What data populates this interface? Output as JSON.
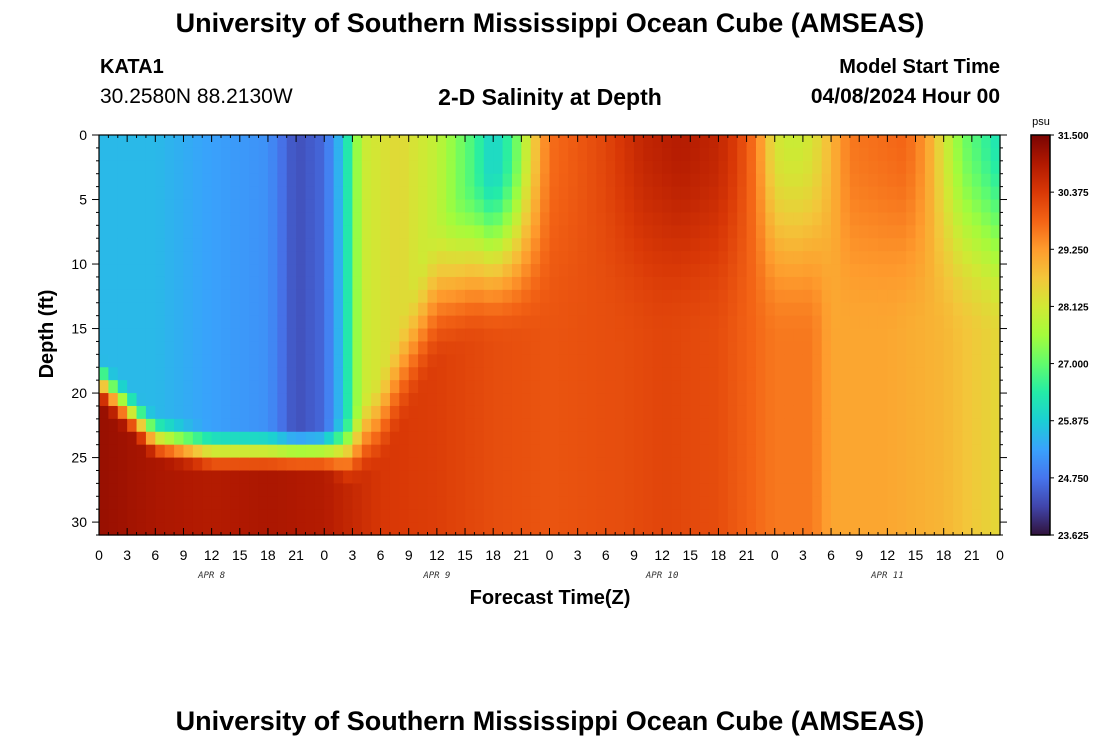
{
  "header": {
    "title": "University of Southern Mississippi Ocean Cube (AMSEAS)",
    "station": "KATA1",
    "coords": "30.2580N  88.2130W",
    "subtitle": "2-D Salinity at Depth",
    "model_start_label": "Model Start Time",
    "model_start_value": "04/08/2024 Hour 00"
  },
  "footer": {
    "title": "University of Southern Mississippi Ocean Cube (AMSEAS)"
  },
  "colors": {
    "colormap": [
      "#30123b",
      "#4145ab",
      "#4675ed",
      "#39a2fc",
      "#1bcfd4",
      "#24eca6",
      "#61fc6c",
      "#a4fc3b",
      "#d1e834",
      "#f3c63a",
      "#fe9b2d",
      "#f36315",
      "#d93806",
      "#b11901",
      "#7a0402"
    ]
  },
  "chart_data": {
    "type": "heatmap",
    "title": "2-D Salinity at Depth",
    "xlabel": "Forecast Time(Z)",
    "ylabel": "Depth (ft)",
    "x_hours": [
      0,
      96
    ],
    "y_depth_ft": [
      0,
      31
    ],
    "x_tick_labels": [
      "0",
      "3",
      "6",
      "9",
      "12",
      "15",
      "18",
      "21",
      "0",
      "3",
      "6",
      "9",
      "12",
      "15",
      "18",
      "21",
      "0",
      "3",
      "6",
      "9",
      "12",
      "15",
      "18",
      "21",
      "0",
      "3",
      "6",
      "9",
      "12",
      "15",
      "18",
      "21",
      "0"
    ],
    "y_tick_labels": [
      "0",
      "5",
      "10",
      "15",
      "20",
      "25",
      "30"
    ],
    "y_tick_values": [
      0,
      5,
      10,
      15,
      20,
      25,
      30
    ],
    "date_labels": [
      {
        "label": "APR 8",
        "hour": 12
      },
      {
        "label": "APR 9",
        "hour": 36
      },
      {
        "label": "APR 10",
        "hour": 60
      },
      {
        "label": "APR 11",
        "hour": 84
      }
    ],
    "colorbar": {
      "unit": "psu",
      "min": 23.625,
      "max": 31.5,
      "tick_labels": [
        "31.500",
        "30.375",
        "29.250",
        "28.125",
        "27.000",
        "25.875",
        "24.750",
        "23.625"
      ],
      "tick_values": [
        31.5,
        30.375,
        29.25,
        28.125,
        27.0,
        25.875,
        24.75,
        23.625
      ]
    },
    "surface_salinity_psu": [
      [
        0,
        25.6
      ],
      [
        6,
        25.6
      ],
      [
        12,
        25.3
      ],
      [
        18,
        25.1
      ],
      [
        21,
        24.3
      ],
      [
        24,
        24.6
      ],
      [
        26,
        25.8
      ],
      [
        28,
        28.0
      ],
      [
        32,
        28.4
      ],
      [
        36,
        27.9
      ],
      [
        40,
        26.7
      ],
      [
        42,
        25.9
      ],
      [
        44,
        26.7
      ],
      [
        46,
        28.4
      ],
      [
        48,
        29.7
      ],
      [
        54,
        30.2
      ],
      [
        58,
        30.7
      ],
      [
        62,
        30.9
      ],
      [
        66,
        30.7
      ],
      [
        68,
        30.3
      ],
      [
        70,
        29.6
      ],
      [
        72,
        28.2
      ],
      [
        74,
        28.0
      ],
      [
        76,
        28.2
      ],
      [
        78,
        28.9
      ],
      [
        80,
        29.6
      ],
      [
        86,
        29.8
      ],
      [
        88,
        29.3
      ],
      [
        90,
        28.2
      ],
      [
        92,
        27.2
      ],
      [
        96,
        26.2
      ]
    ],
    "bottom_salinity_psu": [
      [
        0,
        31.2
      ],
      [
        6,
        31.0
      ],
      [
        12,
        30.9
      ],
      [
        18,
        31.0
      ],
      [
        24,
        30.9
      ],
      [
        30,
        30.4
      ],
      [
        36,
        30.3
      ],
      [
        42,
        30.1
      ],
      [
        48,
        30.0
      ],
      [
        56,
        30.1
      ],
      [
        60,
        30.2
      ],
      [
        66,
        30.1
      ],
      [
        72,
        29.6
      ],
      [
        76,
        29.6
      ],
      [
        78,
        29.1
      ],
      [
        84,
        29.1
      ],
      [
        90,
        28.9
      ],
      [
        96,
        28.4
      ]
    ],
    "halocline_depth_ft": [
      [
        0,
        17
      ],
      [
        6,
        21.5
      ],
      [
        12,
        22.5
      ],
      [
        18,
        22.5
      ],
      [
        24,
        22.5
      ],
      [
        27,
        21.5
      ],
      [
        30,
        18
      ],
      [
        32,
        14
      ],
      [
        36,
        6
      ],
      [
        40,
        3
      ],
      [
        44,
        1.5
      ],
      [
        48,
        0
      ],
      [
        96,
        0
      ]
    ],
    "halocline_thickness_ft": [
      [
        0,
        4
      ],
      [
        24,
        4
      ],
      [
        30,
        8
      ],
      [
        36,
        12
      ],
      [
        48,
        16
      ],
      [
        96,
        16
      ]
    ]
  }
}
